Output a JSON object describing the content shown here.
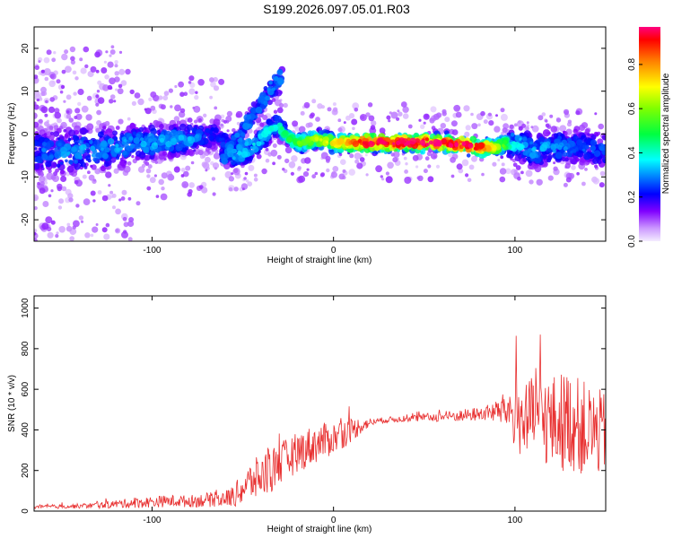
{
  "title": "S199.2026.097.05.01.R03",
  "chart_data": [
    {
      "type": "heatmap",
      "xlabel": "Height of straight line (km)",
      "ylabel": "Frequency (Hz)",
      "xlim": [
        -165,
        150
      ],
      "ylim": [
        -25,
        25
      ],
      "xticks": [
        -100,
        0,
        100
      ],
      "xtick_labels": [
        "-100",
        "0",
        "100"
      ],
      "yticks": [
        -20,
        -10,
        0,
        10,
        20
      ],
      "ytick_labels": [
        "-20",
        "-10",
        "0",
        "10",
        "20"
      ],
      "colorbar": {
        "label": "Normalized spectral amplitude",
        "range": [
          0,
          0.97
        ],
        "ticks": [
          0.0,
          0.2,
          0.4,
          0.6,
          0.8
        ],
        "tick_labels": [
          "0.0",
          "0.2",
          "0.4",
          "0.6",
          "0.8"
        ]
      },
      "ridge": {
        "x": [
          -165,
          -140,
          -120,
          -100,
          -80,
          -65,
          -55,
          -45,
          -35,
          -30,
          -25,
          -20,
          -15,
          -10,
          0,
          10,
          20,
          40,
          60,
          80,
          90,
          100,
          110,
          120,
          135,
          150
        ],
        "center_freq": [
          -4,
          -4,
          -3,
          -2,
          -1,
          0,
          -5,
          -3,
          1,
          2,
          -1,
          -2,
          -2,
          -1,
          -2,
          -2,
          -2,
          -2,
          -2,
          -3,
          -3,
          -2,
          -4,
          -3,
          -3,
          -4
        ],
        "peak_amplitude": [
          0.25,
          0.3,
          0.3,
          0.3,
          0.3,
          0.2,
          0.3,
          0.35,
          0.35,
          0.4,
          0.45,
          0.5,
          0.55,
          0.6,
          0.65,
          0.75,
          0.9,
          0.9,
          0.9,
          0.85,
          0.6,
          0.35,
          0.3,
          0.3,
          0.25,
          0.25
        ],
        "spread_hz": [
          9,
          9,
          8,
          7,
          6,
          6,
          6,
          5,
          4,
          4,
          3,
          3,
          3,
          3,
          3,
          3,
          3,
          3,
          3,
          3,
          3,
          6,
          7,
          7,
          7,
          7
        ]
      }
    },
    {
      "type": "line",
      "xlabel": "Height of straight line (km)",
      "ylabel": "SNR (10 * v/v)",
      "xlim": [
        -165,
        150
      ],
      "ylim": [
        0,
        1060
      ],
      "xticks": [
        -100,
        0,
        100
      ],
      "xtick_labels": [
        "-100",
        "0",
        "100"
      ],
      "yticks": [
        0,
        200,
        400,
        600,
        800,
        1000
      ],
      "ytick_labels": [
        "0",
        "200",
        "400",
        "600",
        "800",
        "1000"
      ],
      "series": [
        {
          "name": "SNR",
          "color": "#e83030",
          "x": [
            -165,
            -150,
            -140,
            -130,
            -120,
            -110,
            -100,
            -90,
            -80,
            -70,
            -60,
            -55,
            -50,
            -45,
            -40,
            -35,
            -30,
            -25,
            -20,
            -15,
            -10,
            -5,
            0,
            5,
            10,
            15,
            20,
            25,
            30,
            40,
            50,
            60,
            70,
            80,
            85,
            90,
            95,
            100,
            105,
            110,
            115,
            120,
            125,
            130,
            135,
            140,
            145,
            150
          ],
          "values": [
            20,
            22,
            25,
            28,
            35,
            40,
            45,
            50,
            48,
            55,
            60,
            75,
            110,
            150,
            170,
            200,
            230,
            260,
            290,
            310,
            330,
            345,
            360,
            380,
            400,
            420,
            435,
            445,
            450,
            455,
            460,
            465,
            470,
            478,
            485,
            490,
            500,
            480,
            440,
            460,
            470,
            430,
            440,
            450,
            420,
            400,
            390,
            380
          ],
          "noise": [
            8,
            10,
            12,
            15,
            20,
            25,
            28,
            30,
            30,
            35,
            40,
            55,
            80,
            100,
            110,
            120,
            110,
            100,
            100,
            100,
            95,
            90,
            80,
            75,
            60,
            40,
            20,
            15,
            15,
            15,
            20,
            25,
            30,
            35,
            40,
            60,
            90,
            180,
            200,
            200,
            220,
            240,
            250,
            250,
            240,
            230,
            220,
            200
          ]
        }
      ]
    }
  ]
}
